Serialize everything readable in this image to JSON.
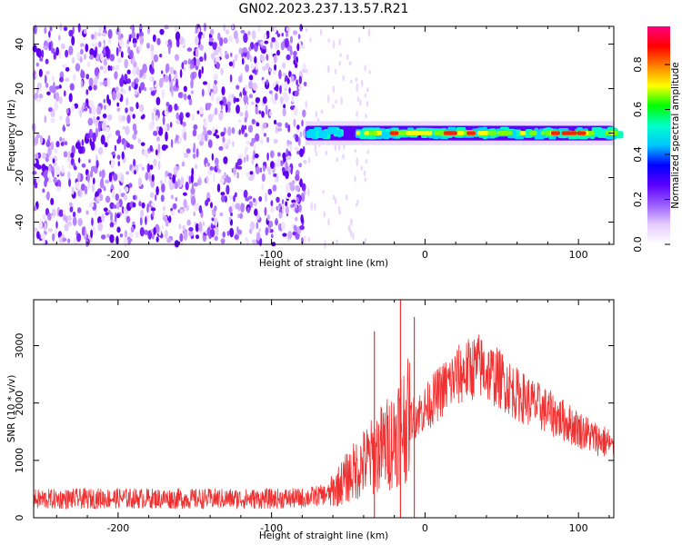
{
  "title": "GN02.2023.237.13.57.R21",
  "chart_data": [
    {
      "type": "heatmap",
      "xlabel": "Height of straight line (km)",
      "ylabel": "Frequency (Hz)",
      "xlim": [
        -255,
        123
      ],
      "ylim": [
        -50,
        48
      ],
      "xticks": [
        -200,
        -100,
        0,
        100
      ],
      "yticks": [
        -40,
        -20,
        0,
        20,
        40
      ],
      "colorbar": {
        "label": "Normalized spectral amplitude",
        "range": [
          0,
          0.97
        ],
        "ticks": [
          0.0,
          0.2,
          0.4,
          0.6,
          0.8
        ],
        "colormap": [
          "#ffffff",
          "#e6ccff",
          "#9a5cff",
          "#5a00ff",
          "#0000ff",
          "#00c8ff",
          "#00ffc8",
          "#00ff00",
          "#ffff00",
          "#ff8000",
          "#ff0000",
          "#ff0080"
        ]
      },
      "noise_region_x": [
        -255,
        -78
      ],
      "signal_band": {
        "x_start": -78,
        "x_end": 123,
        "center_hz": 0,
        "half_width_hz": 3
      },
      "amplitude_peaks_x": [
        -20,
        15,
        18,
        30,
        85,
        92,
        96,
        102
      ]
    },
    {
      "type": "line",
      "xlabel": "Height of straight line (km)",
      "ylabel": "SNR (10 * v/v)",
      "xlim": [
        -255,
        123
      ],
      "ylim": [
        0,
        3800
      ],
      "xticks": [
        -200,
        -100,
        0,
        100
      ],
      "yticks": [
        0,
        1000,
        2000,
        3000
      ],
      "color": "#f03030",
      "series": [
        {
          "x": [
            -255,
            -200,
            -150,
            -100,
            -80,
            -62,
            -50,
            -40,
            -35,
            -30,
            -25,
            -20,
            -17,
            -15,
            -10,
            0,
            10,
            20,
            30,
            35,
            40,
            50,
            60,
            70,
            80,
            90,
            100,
            110,
            120,
            123
          ],
          "y": [
            320,
            340,
            330,
            330,
            340,
            420,
            720,
            950,
            1050,
            1180,
            1280,
            1400,
            1600,
            1650,
            1700,
            1900,
            2200,
            2450,
            2600,
            2650,
            2550,
            2400,
            2150,
            2000,
            1850,
            1700,
            1550,
            1400,
            1300,
            1150
          ]
        }
      ],
      "spikes": [
        {
          "x": -33,
          "y": 3250
        },
        {
          "x": -16,
          "y": 3800
        },
        {
          "x": -7,
          "y": 3500
        }
      ]
    }
  ]
}
